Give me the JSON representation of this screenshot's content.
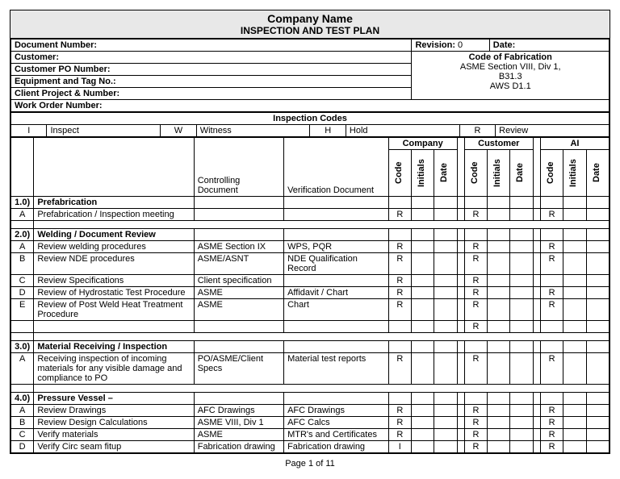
{
  "title": {
    "company": "Company Name",
    "plan": "INSPECTION AND TEST PLAN"
  },
  "header": {
    "doc_num_label": "Document Number:",
    "customer_label": "Customer:",
    "po_label": "Customer PO Number:",
    "equip_label": "Equipment and Tag No.:",
    "client_proj_label": "Client Project & Number:",
    "work_order_label": "Work Order Number:",
    "revision_label": "Revision:",
    "revision_value": "0",
    "date_label": "Date:",
    "code_fab_label": "Code of Fabrication",
    "code_fab_lines": [
      "ASME Section VIII, Div 1,",
      "B31.3",
      "AWS D1.1"
    ]
  },
  "codes": {
    "heading": "Inspection Codes",
    "items": [
      {
        "k": "I",
        "v": "Inspect"
      },
      {
        "k": "W",
        "v": "Witness"
      },
      {
        "k": "H",
        "v": "Hold"
      },
      {
        "k": "R",
        "v": "Review"
      }
    ]
  },
  "cols": {
    "controlling": "Controlling Document",
    "verification": "Verification Document",
    "groups": [
      "Company",
      "Customer",
      "AI"
    ],
    "sub": [
      "Code",
      "Initials",
      "Date"
    ]
  },
  "sections": [
    {
      "num": "1.0)",
      "title": "Prefabrication",
      "rows": [
        {
          "idx": "A",
          "desc": "Prefabrication / Inspection meeting",
          "ctrl": "",
          "ver": "",
          "c": [
            "R",
            "",
            "",
            "R",
            "",
            "",
            "R",
            "",
            ""
          ]
        }
      ]
    },
    {
      "num": "2.0)",
      "title": "Welding / Document Review",
      "rows": [
        {
          "idx": "A",
          "desc": "Review welding procedures",
          "ctrl": "ASME Section IX",
          "ver": "WPS, PQR",
          "c": [
            "R",
            "",
            "",
            "R",
            "",
            "",
            "R",
            "",
            ""
          ]
        },
        {
          "idx": "B",
          "desc": "Review NDE procedures",
          "ctrl": "ASME/ASNT",
          "ver": "NDE Qualification Record",
          "c": [
            "R",
            "",
            "",
            "R",
            "",
            "",
            "R",
            "",
            ""
          ]
        },
        {
          "idx": "C",
          "desc": "Review Specifications",
          "ctrl": "Client specification",
          "ver": "",
          "c": [
            "R",
            "",
            "",
            "R",
            "",
            "",
            "",
            "",
            ""
          ]
        },
        {
          "idx": "D",
          "desc": "Review of Hydrostatic Test Procedure",
          "ctrl": "ASME",
          "ver": "Affidavit / Chart",
          "c": [
            "R",
            "",
            "",
            "R",
            "",
            "",
            "R",
            "",
            ""
          ]
        },
        {
          "idx": "E",
          "desc": "Review of Post Weld Heat Treatment Procedure",
          "ctrl": "ASME",
          "ver": "Chart",
          "c": [
            "R",
            "",
            "",
            "R",
            "",
            "",
            "R",
            "",
            ""
          ]
        },
        {
          "idx": "",
          "desc": "",
          "ctrl": "",
          "ver": "",
          "c": [
            "",
            "",
            "",
            "R",
            "",
            "",
            "",
            "",
            ""
          ]
        }
      ]
    },
    {
      "num": "3.0)",
      "title": "Material Receiving / Inspection",
      "rows": [
        {
          "idx": "A",
          "desc": "Receiving inspection of incoming materials for any visible damage and compliance to PO",
          "ctrl": "PO/ASME/Client Specs",
          "ver": "Material test reports",
          "c": [
            "R",
            "",
            "",
            "R",
            "",
            "",
            "R",
            "",
            ""
          ]
        }
      ]
    },
    {
      "num": "4.0)",
      "title": "Pressure Vessel –",
      "rows": [
        {
          "idx": "A",
          "desc": "Review Drawings",
          "ctrl": "AFC Drawings",
          "ver": "AFC Drawings",
          "c": [
            "R",
            "",
            "",
            "R",
            "",
            "",
            "R",
            "",
            ""
          ]
        },
        {
          "idx": "B",
          "desc": "Review Design Calculations",
          "ctrl": "ASME VIII, Div 1",
          "ver": "AFC Calcs",
          "c": [
            "R",
            "",
            "",
            "R",
            "",
            "",
            "R",
            "",
            ""
          ]
        },
        {
          "idx": "C",
          "desc": "Verify materials",
          "ctrl": "ASME",
          "ver": "MTR's and Certificates",
          "c": [
            "R",
            "",
            "",
            "R",
            "",
            "",
            "R",
            "",
            ""
          ]
        },
        {
          "idx": "D",
          "desc": "Verify Circ seam fitup",
          "ctrl": "Fabrication drawing",
          "ver": "Fabrication drawing",
          "c": [
            "I",
            "",
            "",
            "R",
            "",
            "",
            "R",
            "",
            ""
          ]
        }
      ]
    }
  ],
  "footer": "Page 1 of 11",
  "style": {
    "col_widths": {
      "idx": 22,
      "desc": 196,
      "ctrl": 110,
      "ver": 128,
      "code": 28,
      "gap": 8
    }
  }
}
